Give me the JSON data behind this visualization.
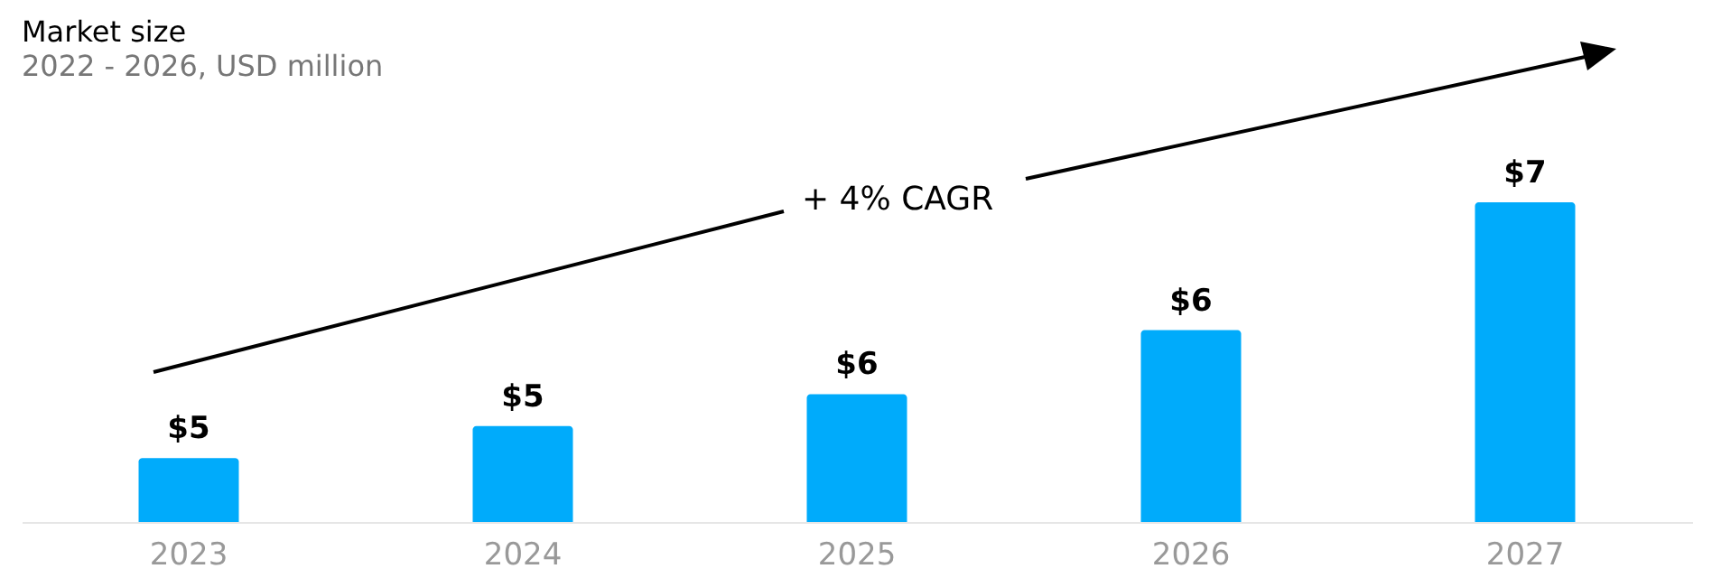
{
  "chart_data": {
    "type": "bar",
    "title": "Market size",
    "subtitle": "2022 - 2026, USD million",
    "categories": [
      "2023",
      "2024",
      "2025",
      "2026",
      "2027"
    ],
    "values": [
      4.9,
      5.2,
      5.5,
      6.1,
      7.3
    ],
    "value_labels": [
      "$5",
      "$5",
      "$6",
      "$6",
      "$7"
    ],
    "ylim": [
      4.3,
      7.3
    ],
    "color": "#00abfb",
    "grid": false,
    "annotations": [
      "+ 4% CAGR"
    ]
  }
}
